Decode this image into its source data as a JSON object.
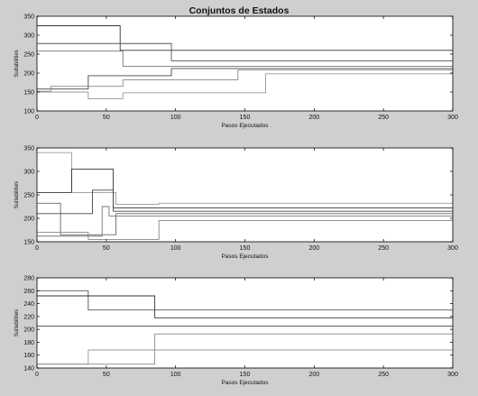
{
  "figure": {
    "title": "Conjuntos de Estados"
  },
  "chart_data": [
    {
      "type": "line",
      "xlabel": "Pasos Ejecutados",
      "ylabel": "Suitabilities",
      "xlim": [
        0,
        300
      ],
      "ylim": [
        100,
        350
      ],
      "xticks": [
        0,
        50,
        100,
        150,
        200,
        250,
        300
      ],
      "yticks": [
        100,
        150,
        200,
        250,
        300,
        350
      ],
      "grid": false,
      "series": [
        {
          "color": "#333333",
          "x": [
            0,
            60,
            60,
            300
          ],
          "y": [
            325,
            325,
            260,
            260
          ]
        },
        {
          "color": "#555555",
          "x": [
            0,
            97,
            97,
            300
          ],
          "y": [
            278,
            278,
            232,
            232
          ]
        },
        {
          "color": "#777777",
          "x": [
            0,
            62,
            62,
            300
          ],
          "y": [
            258,
            258,
            218,
            218
          ]
        },
        {
          "color": "#444444",
          "x": [
            0,
            37,
            37,
            97,
            97,
            300
          ],
          "y": [
            158,
            158,
            193,
            193,
            212,
            212
          ]
        },
        {
          "color": "#888888",
          "x": [
            0,
            10,
            10,
            62,
            62,
            145,
            145,
            300
          ],
          "y": [
            152,
            152,
            165,
            165,
            182,
            182,
            208,
            208
          ]
        },
        {
          "color": "#999999",
          "x": [
            0,
            37,
            37,
            62,
            62,
            165,
            165,
            300
          ],
          "y": [
            150,
            150,
            132,
            132,
            148,
            148,
            198,
            198
          ]
        }
      ]
    },
    {
      "type": "line",
      "xlabel": "Pasos Ejecutados",
      "ylabel": "Suitabilities",
      "xlim": [
        0,
        300
      ],
      "ylim": [
        150,
        350
      ],
      "xticks": [
        0,
        50,
        100,
        150,
        200,
        250,
        300
      ],
      "yticks": [
        150,
        200,
        250,
        300,
        350
      ],
      "grid": false,
      "series": [
        {
          "color": "#999999",
          "x": [
            0,
            25,
            25,
            57,
            57,
            88,
            88,
            300
          ],
          "y": [
            340,
            340,
            255,
            255,
            230,
            230,
            232,
            232
          ]
        },
        {
          "color": "#333333",
          "x": [
            0,
            25,
            25,
            55,
            55,
            300
          ],
          "y": [
            255,
            255,
            305,
            305,
            222,
            222
          ]
        },
        {
          "color": "#444444",
          "x": [
            0,
            40,
            40,
            55,
            55,
            300
          ],
          "y": [
            210,
            210,
            260,
            260,
            215,
            215
          ]
        },
        {
          "color": "#666666",
          "x": [
            0,
            17,
            17,
            57,
            57,
            300
          ],
          "y": [
            232,
            232,
            165,
            165,
            210,
            210
          ]
        },
        {
          "color": "#777777",
          "x": [
            0,
            47,
            47,
            52,
            52,
            300
          ],
          "y": [
            162,
            162,
            225,
            225,
            205,
            205
          ]
        },
        {
          "color": "#888888",
          "x": [
            0,
            37,
            37,
            88,
            88,
            300
          ],
          "y": [
            170,
            170,
            155,
            155,
            195,
            195
          ]
        }
      ]
    },
    {
      "type": "line",
      "xlabel": "Pasos Ejecutados",
      "ylabel": "Suitabilities",
      "xlim": [
        0,
        300
      ],
      "ylim": [
        140,
        280
      ],
      "xticks": [
        0,
        50,
        100,
        150,
        200,
        250,
        300
      ],
      "yticks": [
        140,
        160,
        180,
        200,
        220,
        240,
        260,
        280
      ],
      "grid": false,
      "series": [
        {
          "color": "#555555",
          "x": [
            0,
            37,
            37,
            300
          ],
          "y": [
            260,
            260,
            230,
            230
          ]
        },
        {
          "color": "#333333",
          "x": [
            0,
            85,
            85,
            300
          ],
          "y": [
            252,
            252,
            218,
            218
          ]
        },
        {
          "color": "#444444",
          "x": [
            0,
            300
          ],
          "y": [
            205,
            205
          ]
        },
        {
          "color": "#999999",
          "x": [
            0,
            37,
            37,
            300
          ],
          "y": [
            146,
            146,
            168,
            168
          ]
        },
        {
          "color": "#888888",
          "x": [
            0,
            85,
            85,
            300
          ],
          "y": [
            146,
            146,
            193,
            193
          ]
        }
      ]
    }
  ]
}
